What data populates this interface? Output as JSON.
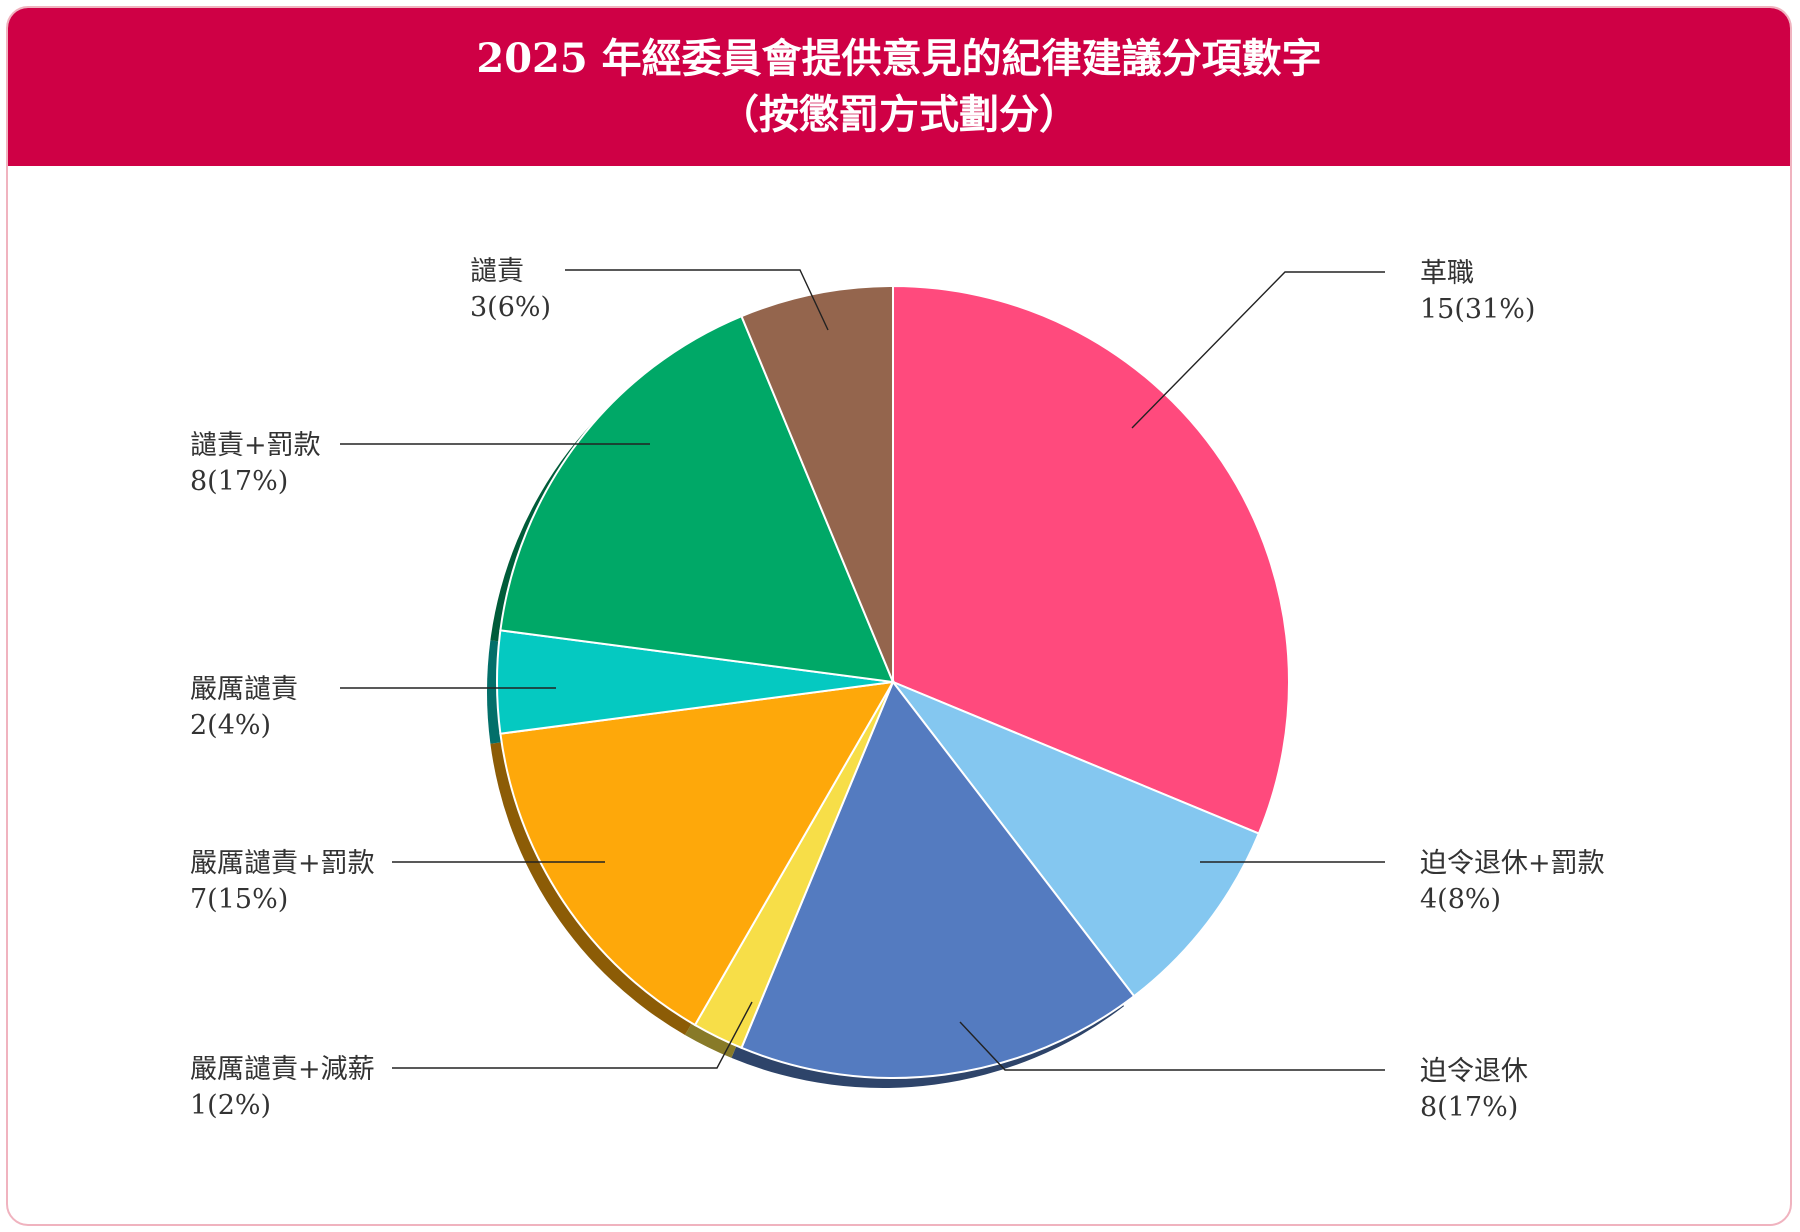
{
  "header": {
    "title_line1": "2025 年經委員會提供意見的紀律建議分項數字",
    "title_line2": "（按懲罰方式劃分）"
  },
  "chart_data": {
    "type": "pie",
    "title": "2025 年經委員會提供意見的紀律建議分項數字（按懲罰方式劃分）",
    "legend": "none",
    "slices": [
      {
        "name": "革職",
        "value": 15,
        "percent": "31%",
        "color": "#ff4a7d",
        "label": "15(31%)"
      },
      {
        "name": "迫令退休+罰款",
        "value": 4,
        "percent": "8%",
        "color": "#84c7f0",
        "label": "4(8%)"
      },
      {
        "name": "迫令退休",
        "value": 8,
        "percent": "17%",
        "color": "#547bc0",
        "label": "8(17%)"
      },
      {
        "name": "嚴厲譴責+減薪",
        "value": 1,
        "percent": "2%",
        "color": "#f7de48",
        "label": "1(2%)"
      },
      {
        "name": "嚴厲譴責+罰款",
        "value": 7,
        "percent": "15%",
        "color": "#fea80a",
        "label": "7(15%)"
      },
      {
        "name": "嚴厲譴責",
        "value": 2,
        "percent": "4%",
        "color": "#05c9c1",
        "label": "2(4%)"
      },
      {
        "name": "譴責+罰款",
        "value": 8,
        "percent": "17%",
        "color": "#00a867",
        "label": "8(17%)"
      },
      {
        "name": "譴責",
        "value": 3,
        "percent": "6%",
        "color": "#94654d",
        "label": "3(6%)"
      }
    ]
  }
}
